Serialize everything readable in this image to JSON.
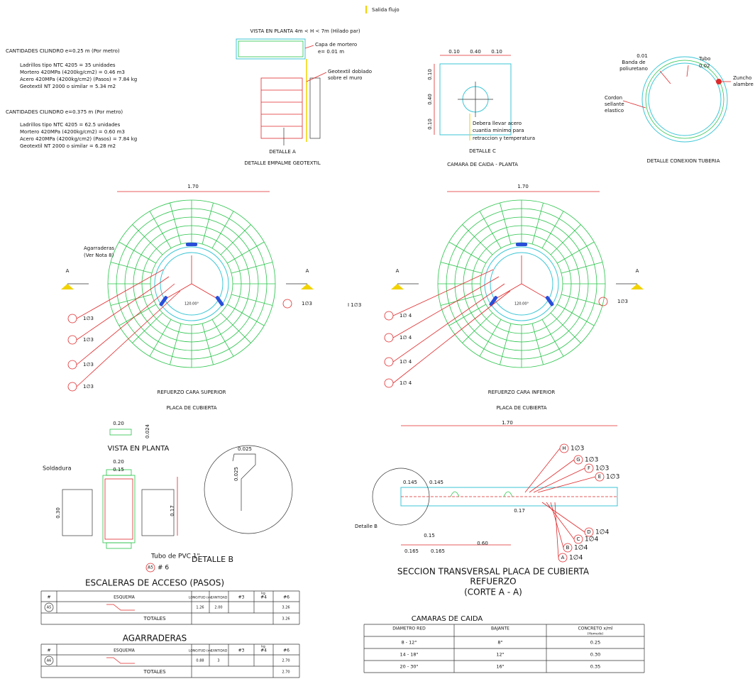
{
  "legend": "Salida flujo",
  "plan_title": "VISTA EN PLANTA 4m < H < 7m (Hilado par)",
  "quantities": [
    {
      "title": "CANTIDADES CILINDRO e=0.25 m (Por metro)",
      "lines": [
        "Ladrillos tipo NTC 4205 = 35 unidades",
        "Mortero 420MPa (4200kg/cm2) = 0.46 m3",
        "Acero 420MPa (4200kg/cm2) (Pasos) = 7.84 kg",
        "Geotextil NT 2000 o similar = 5.34 m2"
      ]
    },
    {
      "title": "CANTIDADES CILINDRO e=0.375 m (Por metro)",
      "lines": [
        "Ladrillos tipo NTC 4205 = 62.5 unidades",
        "Mortero 420MPa (4200kg/cm2) = 0.60 m3",
        "Acero 420MPa (4200kg/cm2) (Pasos) = 7.84 kg",
        "Geotextil NT 2000 o similar = 6.28 m2"
      ]
    }
  ],
  "detail_a": {
    "notes": [
      "Capa de mortero",
      "e= 0.01 m",
      "Geotextil doblado",
      "sobre el muro"
    ],
    "title": "DETALLE A",
    "subtitle": "DETALLE EMPALME GEOTEXTIL"
  },
  "detail_c": {
    "dims_top": [
      "0.10",
      "0.40",
      "0.10"
    ],
    "dims_left": [
      "0.10",
      "0.40",
      "0.10"
    ],
    "notes": [
      "Debera llevar acero",
      "cuantia minimo para",
      "retraccion y temperatura"
    ],
    "title": "DETALLE C",
    "subtitle": "CAMARA DE CAIDA - PLANTA"
  },
  "pipe_detail": {
    "labels": [
      "0.01",
      "Banda de",
      "poliuretano",
      "Tubo",
      "0.02",
      "Zuncho",
      "alambre",
      "Cordon",
      "sellante",
      "elastico"
    ],
    "title": "DETALLE CONEXION TUBERIA"
  },
  "top_plate": {
    "width": "1.70",
    "notes": [
      "Agarraderas",
      "(Ver Nota 8)"
    ],
    "section_marks": [
      "A",
      "A"
    ],
    "angle": "120.00°",
    "bars": [
      "1∅3",
      "1∅3",
      "1∅3",
      "1∅3",
      "1∅3"
    ],
    "title": "REFUERZO CARA SUPERIOR",
    "subtitle": "PLACA DE CUBIERTA"
  },
  "bottom_plate": {
    "width": "1.70",
    "section_marks": [
      "A",
      "A"
    ],
    "angle": "120.00°",
    "bars": [
      "1∅ 4",
      "1∅ 4",
      "1∅ 4",
      "1∅ 4",
      "1∅3"
    ],
    "side_note": "I 1∅3",
    "title": "REFUERZO CARA INFERIOR",
    "subtitle": "PLACA DE CUBIERTA"
  },
  "detail_b": {
    "plan_title": "VISTA EN PLANTA",
    "plan_dims": [
      "0.20",
      "0.024"
    ],
    "weld": "Soldadura",
    "dims": [
      "0.20",
      "0.15",
      "0.30",
      "0.17"
    ],
    "pipe": "Tubo de PVC 1\"",
    "bar_mark": "A5",
    "bar": "# 6",
    "title": "DETALLE B",
    "zoom_dims": [
      "0.025",
      "0.025"
    ]
  },
  "section": {
    "width": "1.70",
    "bars": [
      {
        "mark": "H",
        "label": "1∅3"
      },
      {
        "mark": "G",
        "label": "1∅3"
      },
      {
        "mark": "F",
        "label": "1∅3"
      },
      {
        "mark": "E",
        "label": "1∅3"
      },
      {
        "mark": "D",
        "label": "1∅4"
      },
      {
        "mark": "C",
        "label": "1∅4"
      },
      {
        "mark": "B",
        "label": "1∅4"
      },
      {
        "mark": "A",
        "label": "1∅4"
      }
    ],
    "dims": [
      "0.145",
      "0.145",
      "0.17",
      "0.15",
      "0.60",
      "0.165",
      "0.165"
    ],
    "detail_ref": "Detalle B",
    "title": "SECCION TRANSVERSAL PLACA DE CUBIERTA",
    "subtitle": "REFUERZO",
    "cut": "(CORTE A - A)"
  },
  "steps_table": {
    "title": "ESCALERAS DE ACCESO (PASOS)",
    "header": [
      "#",
      "ESQUEMA",
      "LONGITUD (m)",
      "CANTIDAD",
      "#3",
      "#4",
      "#6"
    ],
    "weight_unit": "kg",
    "rows": [
      {
        "mark": "A5",
        "length": "1.26",
        "quantity": "2.00",
        "w6": "3.26"
      }
    ],
    "totals_label": "TOTALES",
    "total_w6": "3.26"
  },
  "handles_table": {
    "title": "AGARRADERAS",
    "header": [
      "#",
      "ESQUEMA",
      "LONGITUD (m)",
      "CANTIDAD",
      "#3",
      "#4",
      "#6"
    ],
    "weight_unit": "kg",
    "rows": [
      {
        "mark": "A6",
        "length": "0.88",
        "quantity": "3",
        "w6": "2.70"
      }
    ],
    "totals_label": "TOTALES",
    "total_w6": "2.70"
  },
  "drop_table": {
    "title": "CAMARAS DE CAIDA",
    "header": [
      "DIAMETRO RED",
      "BAJANTE",
      "CONCRETO x/ml"
    ],
    "header_note": "(Homedo)",
    "rows": [
      [
        "8 - 12\"",
        "8\"",
        "0.25"
      ],
      [
        "14 - 18\"",
        "12\"",
        "0.30"
      ],
      [
        "20 - 30\"",
        "16\"",
        "0.35"
      ]
    ]
  }
}
